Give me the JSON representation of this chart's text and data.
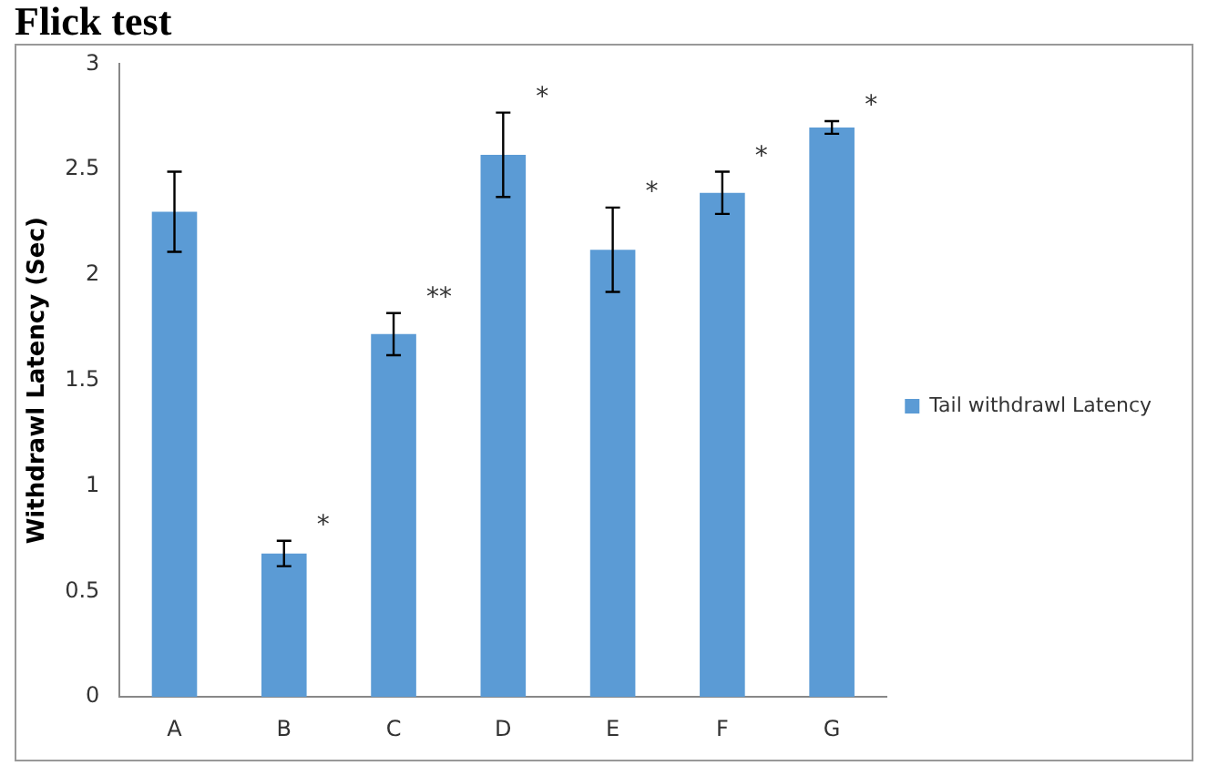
{
  "chart_data": {
    "type": "bar",
    "title": "Flick test",
    "ylabel": "Withdrawl Latency (Sec)",
    "categories": [
      "A",
      "B",
      "C",
      "D",
      "E",
      "F",
      "G"
    ],
    "series": [
      {
        "name": "Tail withdrawl Latency",
        "color": "#5b9bd5",
        "values": [
          2.3,
          0.68,
          1.72,
          2.57,
          2.12,
          2.39,
          2.7
        ],
        "errors": [
          0.19,
          0.06,
          0.1,
          0.2,
          0.2,
          0.1,
          0.03
        ]
      }
    ],
    "ylim": [
      0,
      3
    ],
    "yticks": [
      0,
      0.5,
      1,
      1.5,
      2,
      2.5,
      3
    ],
    "grid": false,
    "legend": "right",
    "annotations": [
      {
        "text": "*",
        "x": "B",
        "y": 0.68
      },
      {
        "text": "**",
        "x": "C",
        "y": 1.72
      },
      {
        "text": "*",
        "x": "D",
        "y": 2.57
      },
      {
        "text": "*",
        "x": "E",
        "y": 2.12
      },
      {
        "text": "*",
        "x": "F",
        "y": 2.39
      },
      {
        "text": "*",
        "x": "G",
        "y": 2.7
      }
    ]
  }
}
